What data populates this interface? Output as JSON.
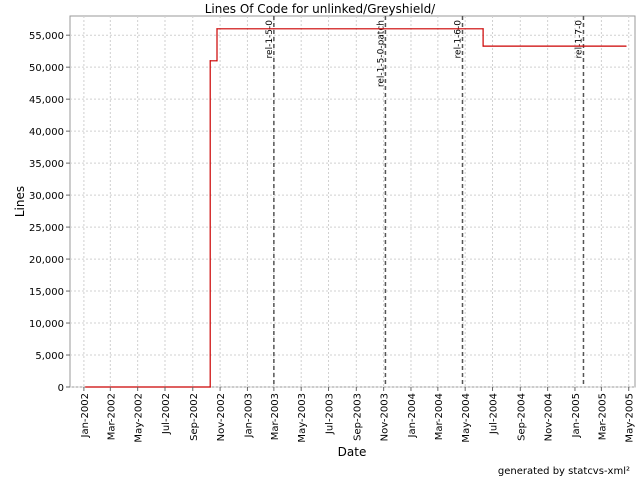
{
  "chart_data": {
    "type": "line",
    "title": "Lines Of Code for unlinked/Greyshield/",
    "xlabel": "Date",
    "ylabel": "Lines",
    "footer": "generated by statcvs-xml²",
    "ylim": [
      0,
      58000
    ],
    "xlim": [
      "2001-12-01",
      "2005-05-15"
    ],
    "grid": true,
    "y_ticks": [
      0,
      5000,
      10000,
      15000,
      20000,
      25000,
      30000,
      35000,
      40000,
      45000,
      50000,
      55000
    ],
    "y_tick_labels": [
      "0",
      "5,000",
      "10,000",
      "15,000",
      "20,000",
      "25,000",
      "30,000",
      "35,000",
      "40,000",
      "45,000",
      "50,000",
      "55,000"
    ],
    "x_ticks": [
      "2002-01-01",
      "2002-03-01",
      "2002-05-01",
      "2002-07-01",
      "2002-09-01",
      "2002-11-01",
      "2003-01-01",
      "2003-03-01",
      "2003-05-01",
      "2003-07-01",
      "2003-09-01",
      "2003-11-01",
      "2004-01-01",
      "2004-03-01",
      "2004-05-01",
      "2004-07-01",
      "2004-09-01",
      "2004-11-01",
      "2005-01-01",
      "2005-03-01",
      "2005-05-01"
    ],
    "x_tick_labels": [
      "Jan-2002",
      "Mar-2002",
      "May-2002",
      "Jul-2002",
      "Sep-2002",
      "Nov-2002",
      "Jan-2003",
      "Mar-2003",
      "May-2003",
      "Jul-2003",
      "Sep-2003",
      "Nov-2003",
      "Jan-2004",
      "Mar-2004",
      "May-2004",
      "Jul-2004",
      "Sep-2004",
      "Nov-2004",
      "Jan-2005",
      "Mar-2005",
      "May-2005"
    ],
    "series": [
      {
        "color": "#cc0000",
        "step": true,
        "points": [
          {
            "x": "2002-01-05",
            "y": 0
          },
          {
            "x": "2002-10-10",
            "y": 0
          },
          {
            "x": "2002-10-10",
            "y": 51000
          },
          {
            "x": "2002-10-25",
            "y": 51000
          },
          {
            "x": "2002-10-25",
            "y": 56000
          },
          {
            "x": "2004-06-10",
            "y": 56000
          },
          {
            "x": "2004-06-10",
            "y": 53300
          },
          {
            "x": "2005-04-25",
            "y": 53300
          }
        ]
      }
    ],
    "annotations": [
      {
        "label": "rel-1-5-0",
        "x": "2003-03-01"
      },
      {
        "label": "rel-1-5-0-patch",
        "x": "2003-11-05"
      },
      {
        "label": "rel-1-6-0",
        "x": "2004-04-25"
      },
      {
        "label": "rel-1-7-0",
        "x": "2005-01-20"
      }
    ]
  }
}
